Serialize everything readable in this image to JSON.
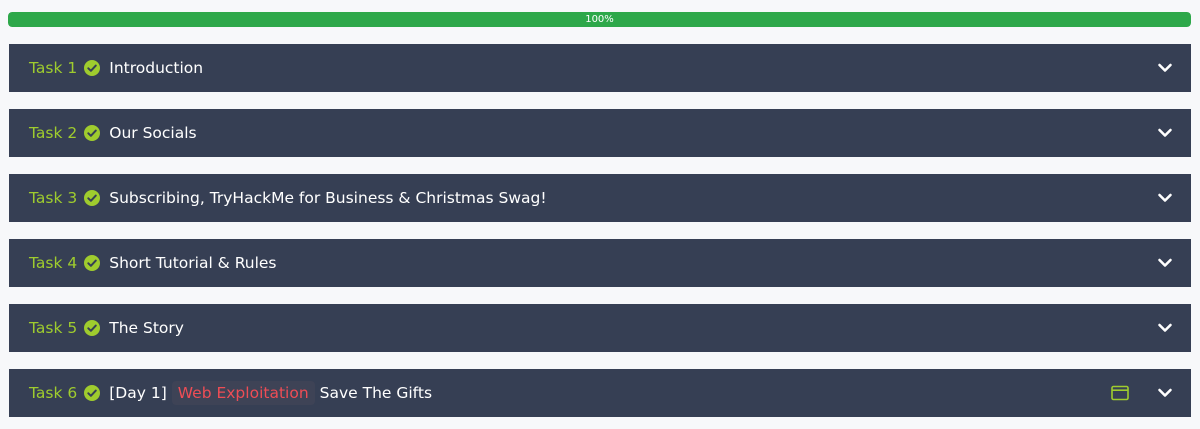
{
  "progress": {
    "label": "100%",
    "value": 1.0,
    "color": "#2ea84a"
  },
  "colors": {
    "task_bg": "#363f54",
    "task_number": "#9fcc2e",
    "check": "#9fcc2e",
    "tag_text": "#ee4d55"
  },
  "tasks": [
    {
      "number": "Task 1",
      "title": "Introduction",
      "completed": true,
      "icon": "check-circle-icon"
    },
    {
      "number": "Task 2",
      "title": "Our Socials",
      "completed": true,
      "icon": "check-circle-icon"
    },
    {
      "number": "Task 3",
      "title": "Subscribing, TryHackMe for Business & Christmas Swag!",
      "completed": true,
      "icon": "check-circle-icon"
    },
    {
      "number": "Task 4",
      "title": "Short Tutorial & Rules",
      "completed": true,
      "icon": "check-circle-icon"
    },
    {
      "number": "Task 5",
      "title": "The Story",
      "completed": true,
      "icon": "check-circle-icon"
    },
    {
      "number": "Task 6",
      "title_prefix": "[Day 1]",
      "tag": "Web Exploitation",
      "title": "Save The Gifts",
      "completed": true,
      "icon": "check-circle-icon",
      "extra_icon": "window-icon"
    }
  ]
}
